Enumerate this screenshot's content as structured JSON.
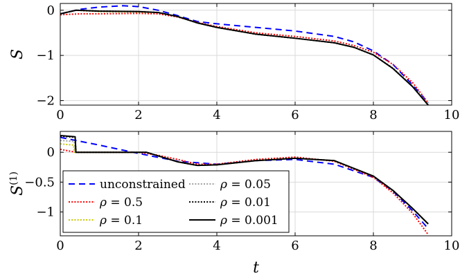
{
  "chart_data": [
    {
      "type": "line",
      "ylabel": "S",
      "xlabel": "",
      "xlim": [
        0,
        10
      ],
      "ylim": [
        -2.1,
        0.15
      ],
      "xticks": [
        0,
        2,
        4,
        6,
        8,
        10
      ],
      "yticks": [
        0,
        -1,
        -2
      ],
      "xtick_labels": [
        "0",
        "2",
        "4",
        "6",
        "8",
        "10"
      ],
      "ytick_labels": [
        "0",
        "−1",
        "−2"
      ],
      "grid": true,
      "series": [
        {
          "name": "unconstrained",
          "color": "#0000ff",
          "style": "dashed",
          "x": [
            0,
            0.5,
            1,
            1.6,
            2,
            2.5,
            3,
            3.5,
            4,
            5,
            6,
            7,
            7.5,
            8,
            8.5,
            9,
            9.4
          ],
          "y": [
            -0.08,
            0.02,
            0.07,
            0.1,
            0.08,
            0.0,
            -0.12,
            -0.25,
            -0.3,
            -0.38,
            -0.46,
            -0.58,
            -0.7,
            -0.9,
            -1.2,
            -1.65,
            -2.05
          ]
        },
        {
          "name": "ρ = 0.5",
          "color": "#ff0000",
          "style": "dotted",
          "x": [
            0,
            0.5,
            1,
            2,
            2.5,
            3,
            3.5,
            4,
            5,
            6,
            7,
            7.5,
            8,
            8.5,
            9,
            9.4
          ],
          "y": [
            -0.1,
            -0.08,
            -0.08,
            -0.07,
            -0.08,
            -0.15,
            -0.27,
            -0.36,
            -0.5,
            -0.58,
            -0.68,
            -0.78,
            -0.93,
            -1.2,
            -1.6,
            -2.05
          ]
        },
        {
          "name": "ρ = 0.1",
          "color": "#c8c800",
          "style": "dotted",
          "x": [
            0,
            0.4,
            1,
            2,
            2.5,
            3,
            3.5,
            4,
            5,
            6,
            7,
            7.5,
            8,
            8.5,
            9,
            9.4
          ],
          "y": [
            -0.08,
            0.0,
            -0.03,
            -0.04,
            -0.05,
            -0.14,
            -0.28,
            -0.38,
            -0.53,
            -0.62,
            -0.72,
            -0.82,
            -0.99,
            -1.28,
            -1.68,
            -2.08
          ]
        },
        {
          "name": "ρ = 0.05",
          "color": "#a0a0a0",
          "style": "dotted",
          "x": [
            0,
            0.4,
            1,
            2,
            2.5,
            3,
            3.5,
            4,
            5,
            6,
            7,
            7.5,
            8,
            8.5,
            9,
            9.4
          ],
          "y": [
            -0.08,
            0.0,
            -0.02,
            -0.03,
            -0.05,
            -0.14,
            -0.28,
            -0.38,
            -0.53,
            -0.62,
            -0.72,
            -0.82,
            -0.99,
            -1.28,
            -1.68,
            -2.09
          ]
        },
        {
          "name": "ρ = 0.01",
          "color": "#000000",
          "style": "dotted",
          "x": [
            0,
            0.4,
            1,
            2,
            2.5,
            3,
            3.5,
            4,
            5,
            6,
            7,
            7.5,
            8,
            8.5,
            9,
            9.4
          ],
          "y": [
            -0.08,
            0.0,
            -0.02,
            -0.03,
            -0.05,
            -0.14,
            -0.28,
            -0.38,
            -0.53,
            -0.62,
            -0.72,
            -0.82,
            -0.99,
            -1.29,
            -1.69,
            -2.1
          ]
        },
        {
          "name": "ρ = 0.001",
          "color": "#000000",
          "style": "solid",
          "x": [
            0,
            0.4,
            1,
            2,
            2.5,
            3,
            3.5,
            4,
            5,
            6,
            7,
            7.5,
            8,
            8.5,
            9,
            9.4
          ],
          "y": [
            -0.08,
            0.0,
            -0.02,
            -0.03,
            -0.05,
            -0.14,
            -0.28,
            -0.38,
            -0.53,
            -0.62,
            -0.72,
            -0.82,
            -0.99,
            -1.29,
            -1.69,
            -2.1
          ]
        }
      ]
    },
    {
      "type": "line",
      "ylabel": "S(1)",
      "xlabel": "t",
      "xlim": [
        0,
        10
      ],
      "ylim": [
        -1.4,
        0.35
      ],
      "xticks": [
        0,
        2,
        4,
        6,
        8,
        10
      ],
      "yticks": [
        0,
        -0.5,
        -1
      ],
      "xtick_labels": [
        "0",
        "2",
        "4",
        "6",
        "8",
        "10"
      ],
      "ytick_labels": [
        "0",
        "−0.5",
        "−1"
      ],
      "grid": true,
      "legend": {
        "position": "bottom-left",
        "columns": 2
      },
      "series": [
        {
          "name": "unconstrained",
          "color": "#0000ff",
          "style": "dashed",
          "x": [
            0,
            1,
            2,
            3,
            4,
            5,
            6,
            7,
            8,
            8.5,
            9,
            9.4
          ],
          "y": [
            0.25,
            0.12,
            -0.02,
            -0.15,
            -0.2,
            -0.14,
            -0.12,
            -0.2,
            -0.42,
            -0.65,
            -0.98,
            -1.28
          ]
        },
        {
          "name": "ρ = 0.5",
          "color": "#ff0000",
          "style": "dotted",
          "x": [
            0,
            0.4,
            1,
            2,
            2.5,
            3,
            3.5,
            4,
            5,
            6,
            7,
            8,
            8.5,
            9,
            9.4
          ],
          "y": [
            0.05,
            0.0,
            0.0,
            0.0,
            -0.05,
            -0.12,
            -0.2,
            -0.2,
            -0.12,
            -0.08,
            -0.15,
            -0.42,
            -0.68,
            -1.02,
            -1.38
          ]
        },
        {
          "name": "ρ = 0.1",
          "color": "#c8c800",
          "style": "dotted",
          "x": [
            0,
            0.34,
            0.36,
            1,
            2,
            2.2,
            3,
            3.5,
            4,
            5,
            6,
            7,
            8,
            8.5,
            9,
            9.4
          ],
          "y": [
            0.14,
            0.12,
            0.0,
            0.0,
            0.0,
            0.0,
            -0.16,
            -0.22,
            -0.21,
            -0.14,
            -0.1,
            -0.14,
            -0.4,
            -0.64,
            -0.94,
            -1.2
          ]
        },
        {
          "name": "ρ = 0.05",
          "color": "#a0a0a0",
          "style": "dotted",
          "x": [
            0,
            0.36,
            0.38,
            1,
            2,
            2.2,
            3,
            3.5,
            4,
            5,
            6,
            7,
            8,
            8.5,
            9,
            9.4
          ],
          "y": [
            0.2,
            0.18,
            0.0,
            0.0,
            0.0,
            0.0,
            -0.16,
            -0.22,
            -0.21,
            -0.14,
            -0.1,
            -0.14,
            -0.4,
            -0.64,
            -0.94,
            -1.2
          ]
        },
        {
          "name": "ρ = 0.01",
          "color": "#000000",
          "style": "dotted",
          "x": [
            0,
            0.38,
            0.4,
            1,
            2,
            2.2,
            3,
            3.5,
            4,
            5,
            6,
            7,
            8,
            8.5,
            9,
            9.4
          ],
          "y": [
            0.27,
            0.25,
            0.0,
            0.0,
            0.0,
            0.0,
            -0.16,
            -0.22,
            -0.21,
            -0.14,
            -0.1,
            -0.14,
            -0.4,
            -0.64,
            -0.94,
            -1.2
          ]
        },
        {
          "name": "ρ = 0.001",
          "color": "#000000",
          "style": "solid",
          "x": [
            0,
            0.38,
            0.4,
            1,
            2,
            2.2,
            3,
            3.5,
            4,
            5,
            6,
            7,
            8,
            8.5,
            9,
            9.4
          ],
          "y": [
            0.28,
            0.26,
            0.0,
            0.0,
            0.0,
            0.0,
            -0.16,
            -0.22,
            -0.21,
            -0.14,
            -0.1,
            -0.14,
            -0.4,
            -0.64,
            -0.94,
            -1.2
          ]
        }
      ]
    }
  ]
}
